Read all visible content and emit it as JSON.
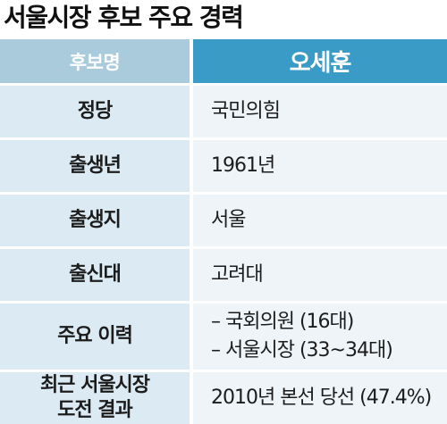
{
  "title": "서울시장 후보 주요 경력",
  "header": {
    "label": "후보명",
    "candidate": "오세훈"
  },
  "rows": [
    {
      "label": "정당",
      "value": "국민의힘"
    },
    {
      "label": "출생년",
      "value": "1961년"
    },
    {
      "label": "출생지",
      "value": "서울"
    },
    {
      "label": "출신대",
      "value": "고려대"
    },
    {
      "label": "주요 이력",
      "values": [
        "– 국회의원 (16대)",
        "– 서울시장 (33~34대)"
      ]
    },
    {
      "label_lines": [
        "최근 서울시장",
        "도전 결과"
      ],
      "value": "2010년 본선 당선 (47.4%)"
    }
  ],
  "colors": {
    "header_label_bg": "#a9cbdc",
    "header_value_bg": "#3b9bc7",
    "label_bg": "#dbeaf3",
    "value_bg": "#eef4f8"
  }
}
